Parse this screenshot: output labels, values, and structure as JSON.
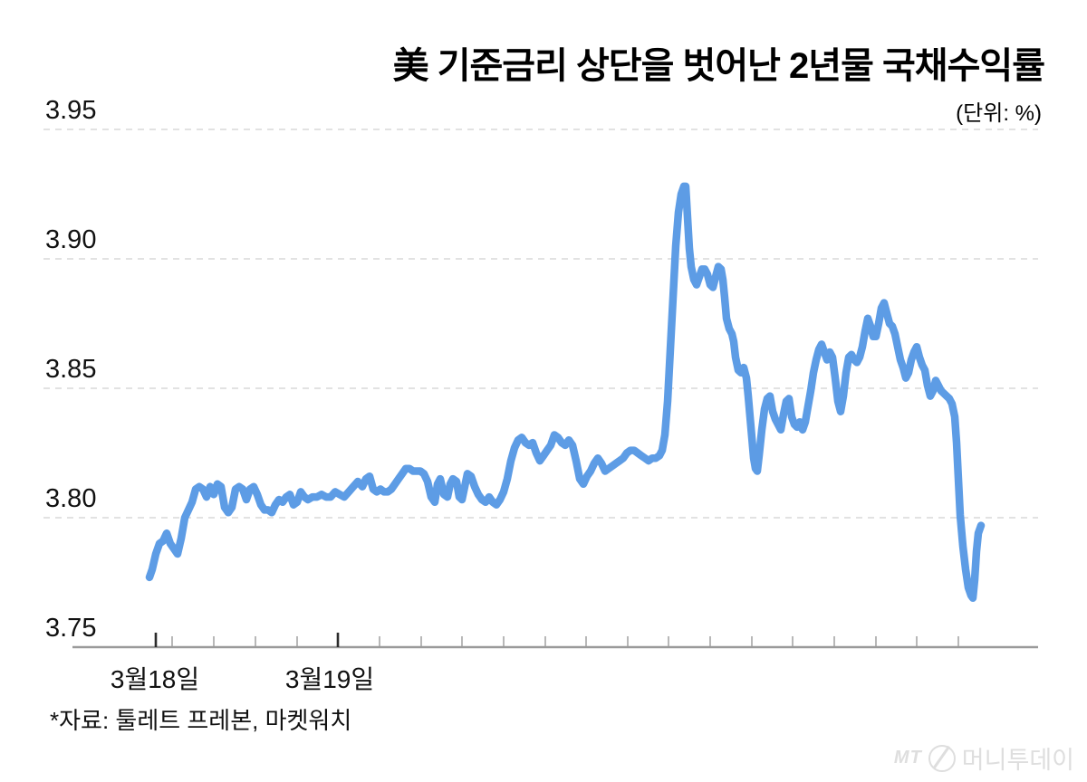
{
  "title": "美 기준금리 상단을 벗어난 2년물 국채수익률",
  "unit_label": "(단위: %)",
  "source_note": "*자료: 툴레트 프레본, 마켓워치",
  "watermark": {
    "prefix": "MT",
    "icon": "circle-slash-icon",
    "brand": "머니투데이"
  },
  "colors": {
    "line": "#5D9CE5",
    "grid": "#d9d9d9",
    "axis": "#9a9a9a",
    "tick_minor": "#9a9a9a",
    "tick_major": "#2b2b2b",
    "text": "#111111",
    "watermark": "#dedede"
  },
  "chart_data": {
    "type": "line",
    "title": "美 기준금리 상단을 벗어난 2년물 국채수익률",
    "unit": "%",
    "ylabel": "",
    "xlabel": "",
    "ylim": [
      3.75,
      3.95
    ],
    "grid": "dashed-horizontal",
    "legend_position": "none",
    "y_ticks": [
      {
        "label": "3.95",
        "value": 3.95
      },
      {
        "label": "3.90",
        "value": 3.9
      },
      {
        "label": "3.85",
        "value": 3.85
      },
      {
        "label": "3.80",
        "value": 3.8
      },
      {
        "label": "3.75",
        "value": 3.75
      }
    ],
    "x_labels": [
      {
        "text": "3월18일",
        "x": 171
      },
      {
        "text": "3월19일",
        "x": 364
      }
    ],
    "x_ticks_minor": [
      190,
      236,
      282,
      328,
      373,
      419,
      465,
      510,
      556,
      602,
      647,
      693,
      738,
      784,
      830,
      875,
      921,
      967,
      1012,
      1058
    ],
    "x_ticks_major": [
      172,
      373
    ],
    "series": [
      {
        "name": "2년물 국채수익률",
        "points": [
          [
            165,
            3.777
          ],
          [
            168,
            3.78
          ],
          [
            172,
            3.786
          ],
          [
            176,
            3.79
          ],
          [
            180,
            3.791
          ],
          [
            184,
            3.794
          ],
          [
            188,
            3.79
          ],
          [
            192,
            3.788
          ],
          [
            196,
            3.786
          ],
          [
            200,
            3.792
          ],
          [
            204,
            3.8
          ],
          [
            208,
            3.803
          ],
          [
            212,
            3.806
          ],
          [
            216,
            3.811
          ],
          [
            220,
            3.812
          ],
          [
            224,
            3.811
          ],
          [
            228,
            3.808
          ],
          [
            232,
            3.812
          ],
          [
            236,
            3.809
          ],
          [
            240,
            3.813
          ],
          [
            244,
            3.812
          ],
          [
            248,
            3.804
          ],
          [
            252,
            3.802
          ],
          [
            256,
            3.804
          ],
          [
            260,
            3.811
          ],
          [
            264,
            3.812
          ],
          [
            268,
            3.811
          ],
          [
            272,
            3.807
          ],
          [
            276,
            3.811
          ],
          [
            280,
            3.812
          ],
          [
            284,
            3.809
          ],
          [
            288,
            3.805
          ],
          [
            292,
            3.803
          ],
          [
            296,
            3.803
          ],
          [
            300,
            3.802
          ],
          [
            304,
            3.805
          ],
          [
            308,
            3.807
          ],
          [
            312,
            3.806
          ],
          [
            316,
            3.808
          ],
          [
            320,
            3.809
          ],
          [
            324,
            3.805
          ],
          [
            328,
            3.806
          ],
          [
            332,
            3.81
          ],
          [
            336,
            3.808
          ],
          [
            340,
            3.807
          ],
          [
            345,
            3.808
          ],
          [
            350,
            3.808
          ],
          [
            355,
            3.809
          ],
          [
            360,
            3.808
          ],
          [
            365,
            3.808
          ],
          [
            370,
            3.81
          ],
          [
            375,
            3.809
          ],
          [
            380,
            3.808
          ],
          [
            385,
            3.81
          ],
          [
            390,
            3.812
          ],
          [
            395,
            3.814
          ],
          [
            400,
            3.812
          ],
          [
            404,
            3.815
          ],
          [
            408,
            3.816
          ],
          [
            412,
            3.811
          ],
          [
            416,
            3.81
          ],
          [
            420,
            3.811
          ],
          [
            424,
            3.81
          ],
          [
            428,
            3.81
          ],
          [
            432,
            3.811
          ],
          [
            436,
            3.813
          ],
          [
            440,
            3.815
          ],
          [
            444,
            3.817
          ],
          [
            448,
            3.819
          ],
          [
            452,
            3.819
          ],
          [
            456,
            3.818
          ],
          [
            460,
            3.818
          ],
          [
            464,
            3.818
          ],
          [
            468,
            3.817
          ],
          [
            472,
            3.814
          ],
          [
            476,
            3.808
          ],
          [
            480,
            3.806
          ],
          [
            483,
            3.813
          ],
          [
            486,
            3.815
          ],
          [
            490,
            3.809
          ],
          [
            494,
            3.808
          ],
          [
            497,
            3.813
          ],
          [
            500,
            3.815
          ],
          [
            504,
            3.814
          ],
          [
            507,
            3.808
          ],
          [
            510,
            3.807
          ],
          [
            513,
            3.812
          ],
          [
            516,
            3.817
          ],
          [
            520,
            3.816
          ],
          [
            524,
            3.812
          ],
          [
            528,
            3.809
          ],
          [
            532,
            3.807
          ],
          [
            536,
            3.806
          ],
          [
            540,
            3.808
          ],
          [
            544,
            3.806
          ],
          [
            548,
            3.805
          ],
          [
            552,
            3.807
          ],
          [
            556,
            3.81
          ],
          [
            560,
            3.815
          ],
          [
            564,
            3.822
          ],
          [
            568,
            3.827
          ],
          [
            572,
            3.83
          ],
          [
            576,
            3.831
          ],
          [
            580,
            3.829
          ],
          [
            584,
            3.828
          ],
          [
            588,
            3.829
          ],
          [
            592,
            3.825
          ],
          [
            596,
            3.822
          ],
          [
            600,
            3.824
          ],
          [
            604,
            3.826
          ],
          [
            608,
            3.828
          ],
          [
            612,
            3.832
          ],
          [
            616,
            3.831
          ],
          [
            620,
            3.829
          ],
          [
            624,
            3.828
          ],
          [
            628,
            3.83
          ],
          [
            632,
            3.828
          ],
          [
            636,
            3.822
          ],
          [
            640,
            3.815
          ],
          [
            644,
            3.813
          ],
          [
            648,
            3.816
          ],
          [
            652,
            3.818
          ],
          [
            656,
            3.821
          ],
          [
            660,
            3.823
          ],
          [
            664,
            3.821
          ],
          [
            668,
            3.818
          ],
          [
            672,
            3.819
          ],
          [
            676,
            3.82
          ],
          [
            680,
            3.821
          ],
          [
            684,
            3.822
          ],
          [
            688,
            3.823
          ],
          [
            692,
            3.825
          ],
          [
            696,
            3.826
          ],
          [
            700,
            3.826
          ],
          [
            704,
            3.825
          ],
          [
            708,
            3.824
          ],
          [
            712,
            3.823
          ],
          [
            716,
            3.822
          ],
          [
            720,
            3.823
          ],
          [
            724,
            3.823
          ],
          [
            728,
            3.824
          ],
          [
            731,
            3.826
          ],
          [
            734,
            3.832
          ],
          [
            737,
            3.845
          ],
          [
            740,
            3.865
          ],
          [
            743,
            3.885
          ],
          [
            746,
            3.905
          ],
          [
            749,
            3.918
          ],
          [
            752,
            3.925
          ],
          [
            755,
            3.928
          ],
          [
            757,
            3.928
          ],
          [
            759,
            3.916
          ],
          [
            761,
            3.904
          ],
          [
            763,
            3.897
          ],
          [
            766,
            3.892
          ],
          [
            769,
            3.89
          ],
          [
            772,
            3.893
          ],
          [
            775,
            3.896
          ],
          [
            778,
            3.896
          ],
          [
            781,
            3.894
          ],
          [
            784,
            3.89
          ],
          [
            787,
            3.889
          ],
          [
            790,
            3.893
          ],
          [
            793,
            3.897
          ],
          [
            796,
            3.896
          ],
          [
            798,
            3.892
          ],
          [
            800,
            3.885
          ],
          [
            802,
            3.877
          ],
          [
            805,
            3.873
          ],
          [
            808,
            3.871
          ],
          [
            810,
            3.868
          ],
          [
            812,
            3.862
          ],
          [
            815,
            3.857
          ],
          [
            818,
            3.856
          ],
          [
            821,
            3.858
          ],
          [
            824,
            3.854
          ],
          [
            826,
            3.847
          ],
          [
            828,
            3.839
          ],
          [
            830,
            3.831
          ],
          [
            832,
            3.823
          ],
          [
            834,
            3.819
          ],
          [
            836,
            3.818
          ],
          [
            838,
            3.824
          ],
          [
            841,
            3.834
          ],
          [
            844,
            3.842
          ],
          [
            847,
            3.846
          ],
          [
            850,
            3.847
          ],
          [
            853,
            3.841
          ],
          [
            856,
            3.838
          ],
          [
            859,
            3.836
          ],
          [
            862,
            3.834
          ],
          [
            865,
            3.84
          ],
          [
            868,
            3.845
          ],
          [
            871,
            3.846
          ],
          [
            874,
            3.839
          ],
          [
            877,
            3.836
          ],
          [
            880,
            3.835
          ],
          [
            883,
            3.837
          ],
          [
            886,
            3.834
          ],
          [
            889,
            3.837
          ],
          [
            892,
            3.843
          ],
          [
            895,
            3.849
          ],
          [
            898,
            3.856
          ],
          [
            901,
            3.861
          ],
          [
            904,
            3.865
          ],
          [
            907,
            3.867
          ],
          [
            910,
            3.864
          ],
          [
            913,
            3.861
          ],
          [
            916,
            3.864
          ],
          [
            919,
            3.862
          ],
          [
            922,
            3.854
          ],
          [
            925,
            3.845
          ],
          [
            928,
            3.841
          ],
          [
            931,
            3.847
          ],
          [
            934,
            3.856
          ],
          [
            937,
            3.862
          ],
          [
            940,
            3.863
          ],
          [
            943,
            3.861
          ],
          [
            946,
            3.86
          ],
          [
            949,
            3.862
          ],
          [
            952,
            3.866
          ],
          [
            955,
            3.872
          ],
          [
            958,
            3.877
          ],
          [
            961,
            3.874
          ],
          [
            964,
            3.87
          ],
          [
            967,
            3.87
          ],
          [
            970,
            3.875
          ],
          [
            973,
            3.881
          ],
          [
            976,
            3.883
          ],
          [
            979,
            3.879
          ],
          [
            982,
            3.875
          ],
          [
            985,
            3.874
          ],
          [
            988,
            3.871
          ],
          [
            991,
            3.866
          ],
          [
            994,
            3.861
          ],
          [
            997,
            3.858
          ],
          [
            1000,
            3.854
          ],
          [
            1003,
            3.856
          ],
          [
            1006,
            3.861
          ],
          [
            1009,
            3.864
          ],
          [
            1012,
            3.866
          ],
          [
            1015,
            3.862
          ],
          [
            1018,
            3.859
          ],
          [
            1021,
            3.857
          ],
          [
            1024,
            3.851
          ],
          [
            1027,
            3.847
          ],
          [
            1030,
            3.849
          ],
          [
            1033,
            3.853
          ],
          [
            1036,
            3.851
          ],
          [
            1039,
            3.849
          ],
          [
            1042,
            3.848
          ],
          [
            1045,
            3.847
          ],
          [
            1048,
            3.846
          ],
          [
            1051,
            3.844
          ],
          [
            1054,
            3.839
          ],
          [
            1056,
            3.829
          ],
          [
            1058,
            3.815
          ],
          [
            1060,
            3.801
          ],
          [
            1063,
            3.789
          ],
          [
            1066,
            3.78
          ],
          [
            1069,
            3.773
          ],
          [
            1072,
            3.77
          ],
          [
            1074,
            3.769
          ],
          [
            1076,
            3.776
          ],
          [
            1078,
            3.787
          ],
          [
            1080,
            3.794
          ],
          [
            1083,
            3.797
          ]
        ]
      }
    ]
  }
}
